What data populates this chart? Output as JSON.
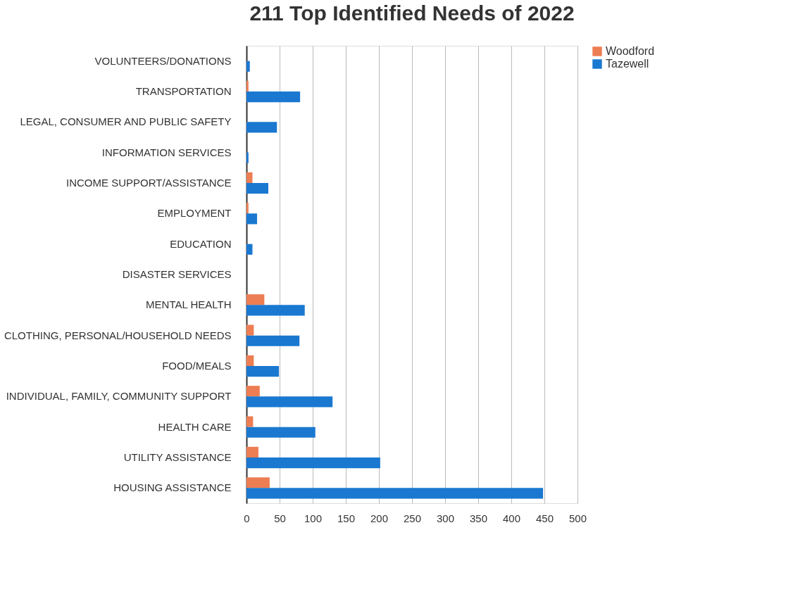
{
  "chart_data": {
    "type": "bar",
    "orientation": "horizontal",
    "title": "211 Top Identified Needs of 2022",
    "categories": [
      "VOLUNTEERS/DONATIONS",
      "TRANSPORTATION",
      "LEGAL, CONSUMER AND PUBLIC SAFETY",
      "INFORMATION SERVICES",
      "INCOME SUPPORT/ASSISTANCE",
      "EMPLOYMENT",
      "EDUCATION",
      "DISASTER SERVICES",
      "MENTAL HEALTH",
      "CLOTHING, PERSONAL/HOUSEHOLD NEEDS",
      "FOOD/MEALS",
      "INDIVIDUAL, FAMILY, COMMUNITY SUPPORT",
      "HEALTH CARE",
      "UTILITY ASSISTANCE",
      "HOUSING ASSISTANCE"
    ],
    "series": [
      {
        "name": "Woodford",
        "color": "#ed7d52",
        "values": [
          0,
          3,
          0,
          0,
          9,
          3,
          0,
          0,
          27,
          11,
          11,
          20,
          10,
          18,
          35
        ]
      },
      {
        "name": "Tazewell",
        "color": "#1a78d0",
        "values": [
          5,
          81,
          46,
          3,
          33,
          16,
          9,
          0,
          88,
          80,
          49,
          130,
          104,
          202,
          448
        ]
      }
    ],
    "xlim": [
      0,
      500
    ],
    "xticks": [
      0,
      50,
      100,
      150,
      200,
      250,
      300,
      350,
      400,
      450,
      500
    ],
    "grid": "x",
    "legend": "right"
  }
}
